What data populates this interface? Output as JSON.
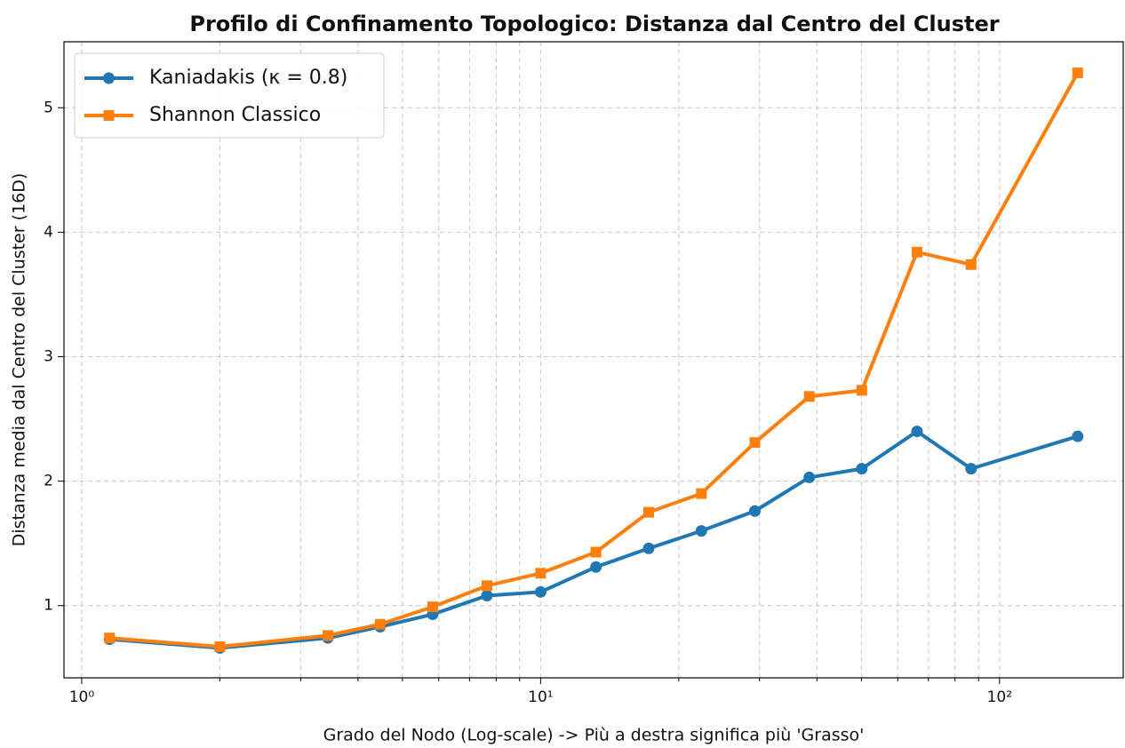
{
  "chart_data": {
    "type": "line",
    "title": "Profilo di Confinamento Topologico: Distanza dal Centro del Cluster",
    "xlabel": "Grado del Nodo (Log-scale) -> Più a destra significa più 'Grasso'",
    "ylabel": "Distanza media dal Centro del Cluster (16D)",
    "xscale": "log",
    "x": [
      1.15,
      2.0,
      3.44,
      4.47,
      5.82,
      7.64,
      10.0,
      13.2,
      17.2,
      22.4,
      29.3,
      38.5,
      50.1,
      66.1,
      86.7,
      148
    ],
    "series": [
      {
        "name": "Kaniadakis (κ = 0.8)",
        "color": "#1f77b4",
        "marker": "circle",
        "values": [
          0.73,
          0.66,
          0.74,
          0.83,
          0.93,
          1.08,
          1.11,
          1.31,
          1.46,
          1.6,
          1.76,
          2.03,
          2.1,
          2.4,
          2.1,
          2.36
        ]
      },
      {
        "name": "Shannon Classico",
        "color": "#ff7f0e",
        "marker": "square",
        "values": [
          0.74,
          0.67,
          0.76,
          0.85,
          0.99,
          1.16,
          1.26,
          1.43,
          1.75,
          1.9,
          2.31,
          2.68,
          2.73,
          3.84,
          3.74,
          5.28
        ]
      }
    ],
    "xlim": [
      0.915,
      186
    ],
    "ylim": [
      0.42,
      5.53
    ],
    "xticks": [
      {
        "value": 1,
        "label": "10⁰"
      },
      {
        "value": 10,
        "label": "10¹"
      },
      {
        "value": 100,
        "label": "10²"
      }
    ],
    "xminorticks": [
      2,
      3,
      4,
      5,
      6,
      7,
      8,
      9,
      20,
      30,
      40,
      50,
      60,
      70,
      80,
      90
    ],
    "yticks": [
      1,
      2,
      3,
      4,
      5
    ],
    "grid": true,
    "legend": "upper left"
  }
}
